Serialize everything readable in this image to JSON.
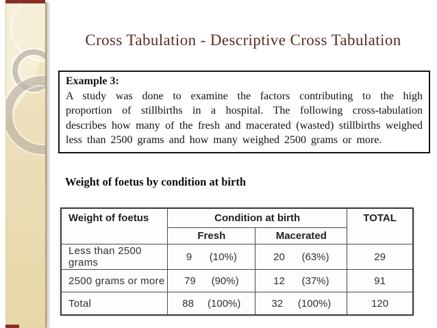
{
  "title": "Cross Tabulation - Descriptive Cross Tabulation",
  "example_box": {
    "heading": "Example 3:",
    "body": "A study was done to examine the factors contributing to the high proportion of stillbirths in a hospital. The following cross-tabulation describes how many of the fresh and macerated (wasted) stillbirths weighed less than 2500 grams and how many weighed 2500 grams or more."
  },
  "table_caption": "Weight of foetus by condition at birth",
  "table": {
    "header": {
      "row_dim": "Weight of foetus",
      "col_group": "Condition at birth",
      "col_sub": [
        "Fresh",
        "Macerated"
      ],
      "total": "TOTAL"
    },
    "rows": [
      {
        "label": "Less than 2500 grams",
        "fresh_count": "9",
        "fresh_pct": "(10%)",
        "macerated_count": "20",
        "macerated_pct": "(63%)",
        "total": "29"
      },
      {
        "label": "2500 grams or more",
        "fresh_count": "79",
        "fresh_pct": "(90%)",
        "macerated_count": "12",
        "macerated_pct": "(37%)",
        "total": "91"
      },
      {
        "label": "Total",
        "fresh_count": "88",
        "fresh_pct": "(100%)",
        "macerated_count": "32",
        "macerated_pct": "(100%)",
        "total": "120"
      }
    ]
  },
  "colors": {
    "title_text": "#5c2a22",
    "accent_maroon": "#8e2c26",
    "sidebar_beige": "#ecdfba",
    "table_border": "#474747",
    "example_border": "#141414"
  }
}
